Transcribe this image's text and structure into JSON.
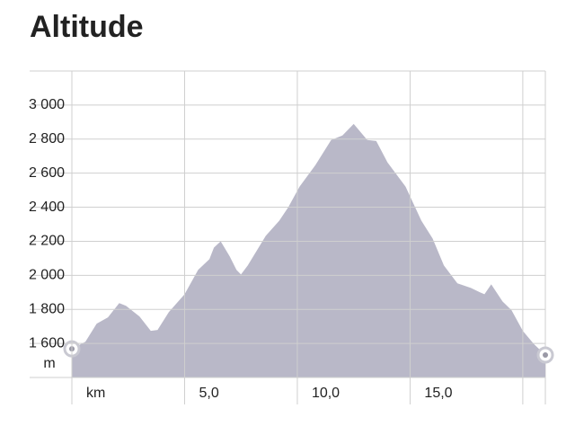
{
  "chart_data": {
    "type": "area",
    "title": "Altitude",
    "x_label": "km",
    "y_label": "m",
    "x": [
      0,
      0.6,
      1.1,
      1.6,
      2.1,
      2.4,
      3.0,
      3.5,
      3.8,
      4.3,
      5.0,
      5.6,
      6.1,
      6.3,
      6.6,
      7.0,
      7.3,
      7.5,
      7.8,
      8.6,
      9.2,
      9.6,
      10.1,
      10.8,
      11.5,
      12.0,
      12.5,
      13.1,
      13.5,
      14.0,
      14.8,
      15.5,
      16.0,
      16.5,
      17.1,
      17.7,
      18.1,
      18.3,
      18.6,
      19.1,
      19.5,
      20.0,
      20.5,
      21.0
    ],
    "series": [
      {
        "color": "#b9b8c8",
        "values": [
          1568,
          1610,
          1716,
          1753,
          1837,
          1821,
          1758,
          1674,
          1679,
          1784,
          1889,
          2032,
          2095,
          2163,
          2200,
          2111,
          2032,
          2005,
          2058,
          2232,
          2321,
          2400,
          2521,
          2647,
          2795,
          2821,
          2889,
          2795,
          2789,
          2663,
          2521,
          2321,
          2216,
          2058,
          1953,
          1926,
          1900,
          1889,
          1947,
          1847,
          1795,
          1674,
          1595,
          1532
        ]
      }
    ],
    "xlim": [
      0,
      21
    ],
    "ylim": [
      1400,
      3200
    ],
    "xticks": [
      {
        "value": 0,
        "label": null
      },
      {
        "value": 5,
        "label": "5,0"
      },
      {
        "value": 10,
        "label": "10,0"
      },
      {
        "value": 15,
        "label": "15,0"
      },
      {
        "value": 20,
        "label": null
      }
    ],
    "yticks": [
      {
        "value": 1600,
        "label": "1 600"
      },
      {
        "value": 1800,
        "label": "1 800"
      },
      {
        "value": 2000,
        "label": "2 000"
      },
      {
        "value": 2200,
        "label": "2 200"
      },
      {
        "value": 2400,
        "label": "2 400"
      },
      {
        "value": 2600,
        "label": "2 600"
      },
      {
        "value": 2800,
        "label": "2 800"
      },
      {
        "value": 3000,
        "label": "3 000"
      }
    ],
    "grid": true
  }
}
